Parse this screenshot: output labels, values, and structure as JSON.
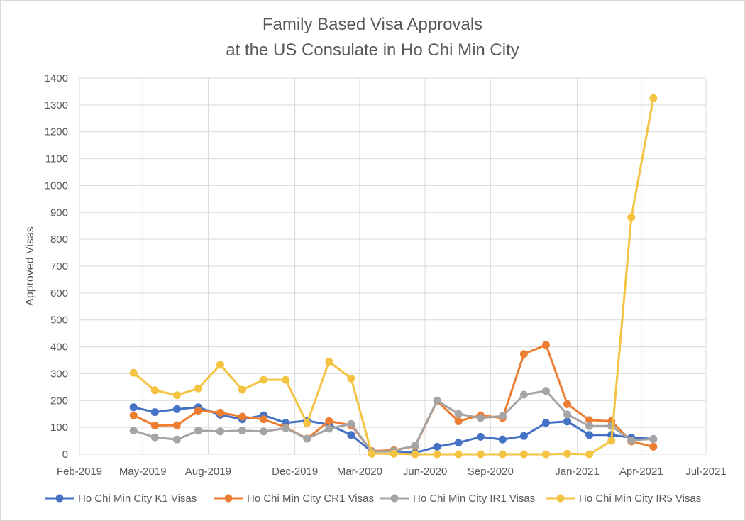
{
  "chart_data": {
    "type": "line",
    "title_lines": [
      "Family Based Visa Approvals",
      "at the US Consulate in Ho Chi Min City"
    ],
    "xlabel": "",
    "ylabel": "Approved Visas",
    "ylim": [
      0,
      1400
    ],
    "y_ticks": [
      0,
      100,
      200,
      300,
      400,
      500,
      600,
      700,
      800,
      900,
      1000,
      1100,
      1200,
      1300,
      1400
    ],
    "x_range": [
      "2019-02-01",
      "2021-07-01"
    ],
    "x_ticks": [
      {
        "date": "2019-02-01",
        "label": "Feb-2019"
      },
      {
        "date": "2019-05-01",
        "label": "May-2019"
      },
      {
        "date": "2019-08-01",
        "label": "Aug-2019"
      },
      {
        "date": "2019-12-01",
        "label": "Dec-2019"
      },
      {
        "date": "2020-03-01",
        "label": "Mar-2020"
      },
      {
        "date": "2020-06-01",
        "label": "Jun-2020"
      },
      {
        "date": "2020-09-01",
        "label": "Sep-2020"
      },
      {
        "date": "2021-01-01",
        "label": "Jan-2021"
      },
      {
        "date": "2021-04-01",
        "label": "Apr-2021"
      },
      {
        "date": "2021-07-01",
        "label": "Jul-2021"
      }
    ],
    "x": [
      "2019-04-18",
      "2019-05-18",
      "2019-06-18",
      "2019-07-18",
      "2019-08-18",
      "2019-09-18",
      "2019-10-18",
      "2019-11-18",
      "2019-12-18",
      "2020-01-18",
      "2020-02-18",
      "2020-03-18",
      "2020-04-18",
      "2020-05-18",
      "2020-06-18",
      "2020-07-18",
      "2020-08-18",
      "2020-09-18",
      "2020-10-18",
      "2020-11-18",
      "2020-12-18",
      "2021-01-18",
      "2021-02-18",
      "2021-03-18",
      "2021-04-18"
    ],
    "grid": true,
    "legend_position": "bottom",
    "series": [
      {
        "name": "Ho Chi Min City  K1 Visas",
        "color": "#4472c4",
        "values": [
          175,
          157,
          168,
          175,
          147,
          130,
          145,
          117,
          125,
          110,
          72,
          10,
          12,
          5,
          28,
          43,
          65,
          55,
          68,
          117,
          122,
          72,
          72,
          62,
          57
        ]
      },
      {
        "name": "Ho Chi Min City  CR1 Visas",
        "color": "#ed7d31",
        "values": [
          145,
          107,
          108,
          162,
          155,
          140,
          130,
          100,
          58,
          123,
          108,
          12,
          15,
          30,
          198,
          123,
          145,
          135,
          373,
          407,
          187,
          127,
          123,
          48,
          28
        ]
      },
      {
        "name": "Ho Chi Min City  IR1 Visas",
        "color": "#a5a5a5",
        "values": [
          88,
          63,
          55,
          88,
          85,
          88,
          85,
          97,
          58,
          95,
          113,
          10,
          12,
          33,
          200,
          150,
          135,
          142,
          222,
          236,
          148,
          105,
          105,
          52,
          57
        ]
      },
      {
        "name": "Ho Chi Min City  IR5 Visas",
        "color": "#f5c342",
        "values": [
          303,
          238,
          220,
          245,
          333,
          240,
          277,
          277,
          115,
          345,
          282,
          2,
          2,
          0,
          0,
          0,
          0,
          0,
          0,
          0,
          2,
          0,
          50,
          882,
          1325
        ]
      }
    ]
  }
}
